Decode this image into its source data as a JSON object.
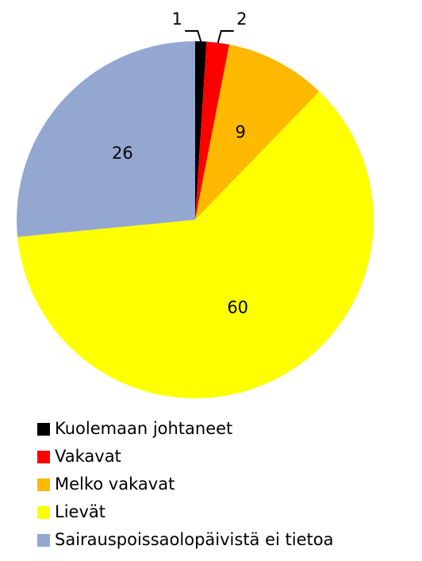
{
  "chart_data": {
    "type": "pie",
    "categories": [
      "Kuolemaan johtaneet",
      "Vakavat",
      "Melko vakavat",
      "Lievät",
      "Sairauspoissaolopäivistä ei tietoa"
    ],
    "values": [
      1,
      2,
      9,
      60,
      26
    ],
    "colors": [
      "#000000",
      "#ff0000",
      "#ffb900",
      "#ffff00",
      "#94a7d1"
    ],
    "legend": "bottom"
  }
}
